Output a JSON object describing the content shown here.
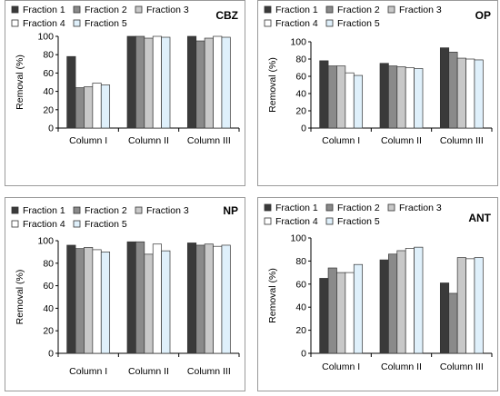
{
  "fractions": [
    "Fraction 1",
    "Fraction 2",
    "Fraction 3",
    "Fraction 4",
    "Fraction 5"
  ],
  "colors": {
    "fraction_1": "#3a3a3a",
    "fraction_2": "#8a8a8a",
    "fraction_3": "#c8c8c8",
    "fraction_4": "#ffffff",
    "fraction_5": "#dff0fb",
    "bar_stroke": "#333333",
    "frame": "#9a9a9a"
  },
  "chart_data": [
    {
      "type": "bar",
      "title": "CBZ",
      "ylabel": "Removal (%)",
      "xlabel": "",
      "ylim": [
        0,
        100
      ],
      "yticks": [
        0,
        20,
        40,
        60,
        80,
        100
      ],
      "categories": [
        "Column I",
        "Column II",
        "Column III"
      ],
      "series": [
        {
          "name": "Fraction 1",
          "values": [
            78,
            100,
            100
          ]
        },
        {
          "name": "Fraction 2",
          "values": [
            44,
            100,
            95
          ]
        },
        {
          "name": "Fraction 3",
          "values": [
            45,
            98,
            98
          ]
        },
        {
          "name": "Fraction 4",
          "values": [
            49,
            100,
            100
          ]
        },
        {
          "name": "Fraction 5",
          "values": [
            47,
            99,
            99
          ]
        }
      ],
      "legend": "top-left",
      "grid": false
    },
    {
      "type": "bar",
      "title": "OP",
      "ylabel": "Removal (%)",
      "xlabel": "",
      "ylim": [
        0,
        100
      ],
      "yticks": [
        0,
        20,
        40,
        60,
        80,
        100
      ],
      "categories": [
        "Column I",
        "Column II",
        "Column III"
      ],
      "series": [
        {
          "name": "Fraction 1",
          "values": [
            78,
            75,
            93
          ]
        },
        {
          "name": "Fraction 2",
          "values": [
            72,
            72,
            88
          ]
        },
        {
          "name": "Fraction 3",
          "values": [
            72,
            71,
            81
          ]
        },
        {
          "name": "Fraction 4",
          "values": [
            64,
            70,
            80
          ]
        },
        {
          "name": "Fraction 5",
          "values": [
            61,
            69,
            79
          ]
        }
      ],
      "legend": "top-left",
      "grid": false
    },
    {
      "type": "bar",
      "title": "NP",
      "ylabel": "Removal (%)",
      "xlabel": "",
      "ylim": [
        0,
        100
      ],
      "yticks": [
        0,
        20,
        40,
        60,
        80,
        100
      ],
      "categories": [
        "Column I",
        "Column II",
        "Column III"
      ],
      "series": [
        {
          "name": "Fraction 1",
          "values": [
            96,
            99,
            98
          ]
        },
        {
          "name": "Fraction 2",
          "values": [
            93,
            99,
            96
          ]
        },
        {
          "name": "Fraction 3",
          "values": [
            94,
            88,
            97
          ]
        },
        {
          "name": "Fraction 4",
          "values": [
            92,
            97,
            95
          ]
        },
        {
          "name": "Fraction 5",
          "values": [
            90,
            91,
            96
          ]
        }
      ],
      "legend": "top-left",
      "grid": false
    },
    {
      "type": "bar",
      "title": "ANT",
      "ylabel": "Removal (%)",
      "xlabel": "",
      "ylim": [
        0,
        100
      ],
      "yticks": [
        0,
        20,
        40,
        60,
        80,
        100
      ],
      "categories": [
        "Column I",
        "Column II",
        "Column III"
      ],
      "series": [
        {
          "name": "Fraction 1",
          "values": [
            65,
            81,
            61
          ]
        },
        {
          "name": "Fraction 2",
          "values": [
            74,
            86,
            52
          ]
        },
        {
          "name": "Fraction 3",
          "values": [
            70,
            89,
            83
          ]
        },
        {
          "name": "Fraction 4",
          "values": [
            70,
            91,
            82
          ]
        },
        {
          "name": "Fraction 5",
          "values": [
            77,
            92,
            83
          ]
        }
      ],
      "legend": "top-left",
      "grid": false
    }
  ]
}
